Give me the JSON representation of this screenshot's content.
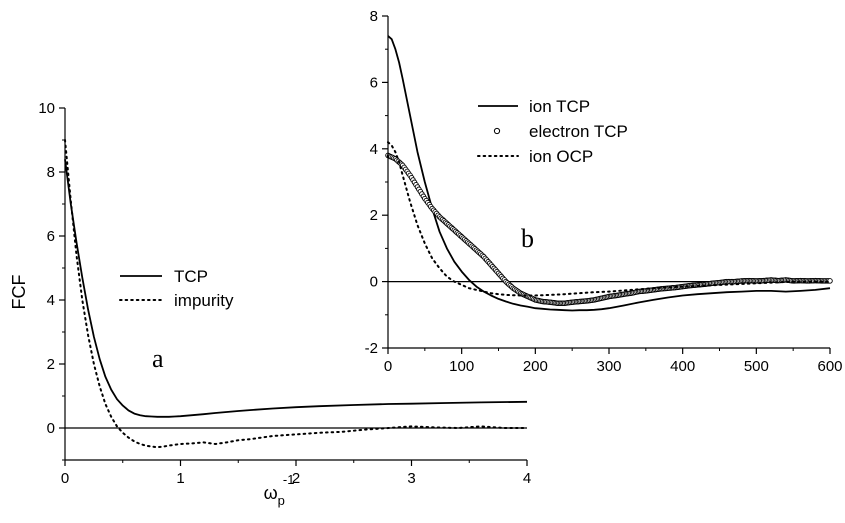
{
  "chart_data": [
    {
      "type": "line",
      "panel_label": "a",
      "ylabel": "FCF",
      "xlabel": "ω_p^-1",
      "xlabel_main": "ω",
      "xlabel_sub": "p",
      "xlabel_sup": "-1",
      "xlim": [
        0,
        4
      ],
      "ylim": [
        -1,
        10
      ],
      "x_ticks": [
        0,
        1,
        2,
        3,
        4
      ],
      "y_ticks": [
        0,
        2,
        4,
        6,
        8,
        10
      ],
      "zero_line": true,
      "legend_position": "center-right",
      "series": [
        {
          "name": "TCP",
          "style": "solid",
          "x": [
            0,
            0.05,
            0.1,
            0.15,
            0.2,
            0.25,
            0.3,
            0.35,
            0.4,
            0.45,
            0.5,
            0.55,
            0.6,
            0.65,
            0.7,
            0.75,
            0.8,
            0.85,
            0.9,
            0.95,
            1.0,
            1.1,
            1.2,
            1.3,
            1.4,
            1.5,
            1.6,
            1.8,
            2.0,
            2.2,
            2.5,
            2.8,
            3.0,
            3.3,
            3.6,
            4.0
          ],
          "y": [
            8.4,
            7.0,
            5.8,
            4.7,
            3.7,
            2.85,
            2.15,
            1.6,
            1.2,
            0.9,
            0.7,
            0.55,
            0.45,
            0.4,
            0.37,
            0.36,
            0.35,
            0.35,
            0.35,
            0.36,
            0.37,
            0.4,
            0.43,
            0.47,
            0.5,
            0.53,
            0.56,
            0.61,
            0.65,
            0.68,
            0.72,
            0.75,
            0.76,
            0.78,
            0.8,
            0.82
          ]
        },
        {
          "name": "impurity",
          "style": "dotted",
          "x": [
            0,
            0.05,
            0.1,
            0.15,
            0.2,
            0.25,
            0.3,
            0.35,
            0.4,
            0.45,
            0.5,
            0.55,
            0.6,
            0.65,
            0.7,
            0.75,
            0.8,
            0.85,
            0.9,
            1.0,
            1.1,
            1.2,
            1.3,
            1.4,
            1.5,
            1.6,
            1.7,
            1.8,
            2.0,
            2.2,
            2.4,
            2.6,
            2.8,
            3.0,
            3.2,
            3.4,
            3.6,
            3.8,
            4.0
          ],
          "y": [
            9.0,
            7.1,
            5.4,
            4.0,
            2.9,
            2.0,
            1.3,
            0.75,
            0.35,
            0.05,
            -0.15,
            -0.3,
            -0.42,
            -0.5,
            -0.55,
            -0.58,
            -0.6,
            -0.58,
            -0.55,
            -0.5,
            -0.48,
            -0.45,
            -0.5,
            -0.45,
            -0.38,
            -0.35,
            -0.3,
            -0.25,
            -0.2,
            -0.15,
            -0.12,
            -0.05,
            0.0,
            0.05,
            0.02,
            0.0,
            0.05,
            0.0,
            0.0
          ]
        }
      ]
    },
    {
      "type": "line",
      "panel_label": "b",
      "xlim": [
        0,
        600
      ],
      "ylim": [
        -2,
        8
      ],
      "x_ticks": [
        0,
        100,
        200,
        300,
        400,
        500,
        600
      ],
      "y_ticks": [
        -2,
        0,
        2,
        4,
        6,
        8
      ],
      "zero_line": true,
      "legend_position": "top-center",
      "series": [
        {
          "name": "ion TCP",
          "style": "solid",
          "x": [
            0,
            5,
            10,
            15,
            20,
            30,
            40,
            50,
            60,
            70,
            80,
            90,
            100,
            110,
            120,
            130,
            140,
            150,
            160,
            170,
            180,
            190,
            200,
            210,
            220,
            230,
            240,
            250,
            260,
            270,
            280,
            290,
            300,
            320,
            340,
            360,
            380,
            400,
            420,
            440,
            460,
            480,
            500,
            520,
            540,
            560,
            580,
            600
          ],
          "y": [
            7.4,
            7.3,
            7.0,
            6.6,
            6.1,
            5.0,
            3.9,
            3.0,
            2.2,
            1.5,
            1.0,
            0.6,
            0.3,
            0.05,
            -0.15,
            -0.3,
            -0.42,
            -0.52,
            -0.6,
            -0.67,
            -0.72,
            -0.76,
            -0.8,
            -0.82,
            -0.84,
            -0.85,
            -0.86,
            -0.87,
            -0.86,
            -0.86,
            -0.85,
            -0.83,
            -0.8,
            -0.72,
            -0.63,
            -0.55,
            -0.48,
            -0.42,
            -0.38,
            -0.35,
            -0.32,
            -0.3,
            -0.28,
            -0.28,
            -0.3,
            -0.28,
            -0.25,
            -0.2
          ]
        },
        {
          "name": "electron TCP",
          "style": "circles",
          "x": [
            0,
            10,
            20,
            30,
            40,
            50,
            60,
            70,
            80,
            90,
            100,
            110,
            120,
            130,
            140,
            150,
            160,
            170,
            180,
            190,
            200,
            210,
            220,
            230,
            240,
            250,
            260,
            270,
            280,
            290,
            300,
            310,
            320,
            330,
            340,
            350,
            360,
            370,
            380,
            390,
            400,
            410,
            420,
            430,
            440,
            450,
            460,
            470,
            480,
            490,
            500,
            510,
            520,
            530,
            540,
            550,
            560,
            570,
            580,
            590,
            600
          ],
          "y": [
            3.8,
            3.7,
            3.5,
            3.2,
            2.85,
            2.5,
            2.2,
            1.95,
            1.75,
            1.55,
            1.35,
            1.15,
            0.95,
            0.75,
            0.5,
            0.25,
            0.0,
            -0.2,
            -0.35,
            -0.45,
            -0.55,
            -0.6,
            -0.62,
            -0.65,
            -0.65,
            -0.62,
            -0.6,
            -0.58,
            -0.55,
            -0.5,
            -0.45,
            -0.42,
            -0.38,
            -0.35,
            -0.3,
            -0.28,
            -0.25,
            -0.22,
            -0.2,
            -0.18,
            -0.15,
            -0.12,
            -0.1,
            -0.08,
            -0.05,
            -0.03,
            0.0,
            0.0,
            0.02,
            0.03,
            0.02,
            0.03,
            0.05,
            0.03,
            0.05,
            0.02,
            0.03,
            0.02,
            0.03,
            0.02,
            0.02
          ]
        },
        {
          "name": "ion OCP",
          "style": "dotted",
          "x": [
            0,
            5,
            10,
            15,
            20,
            25,
            30,
            40,
            50,
            60,
            70,
            80,
            90,
            100,
            110,
            120,
            130,
            140,
            150,
            160,
            180,
            200,
            220,
            240,
            260,
            280,
            300,
            330,
            360,
            400,
            450,
            500,
            550,
            600
          ],
          "y": [
            4.2,
            4.1,
            3.9,
            3.6,
            3.2,
            2.8,
            2.4,
            1.7,
            1.15,
            0.7,
            0.4,
            0.15,
            0.0,
            -0.1,
            -0.2,
            -0.25,
            -0.3,
            -0.35,
            -0.38,
            -0.4,
            -0.42,
            -0.42,
            -0.4,
            -0.38,
            -0.35,
            -0.32,
            -0.3,
            -0.25,
            -0.2,
            -0.15,
            -0.1,
            -0.05,
            0.0,
            0.0
          ]
        }
      ]
    }
  ]
}
